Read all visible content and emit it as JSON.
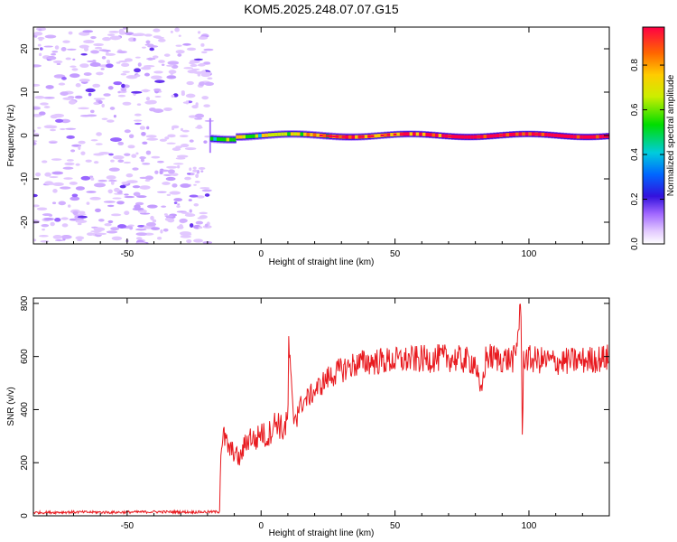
{
  "figure": {
    "title": "KOM5.2025.248.07.07.G15"
  },
  "colors": {
    "snr_line": "#e8191e",
    "signal_band_core": "#e8191e"
  },
  "chart_data": [
    {
      "type": "heatmap",
      "xlabel": "Height of straight line (km)",
      "ylabel": "Frequency (Hz)",
      "xlim": [
        -85,
        130
      ],
      "ylim": [
        -25,
        25
      ],
      "xticks": [
        -50,
        0,
        50,
        100
      ],
      "xtick_labels": [
        "-50",
        "0",
        "50",
        "100"
      ],
      "yticks": [
        -20,
        -10,
        0,
        10,
        20
      ],
      "ytick_labels": [
        "-20",
        "-10",
        "0",
        "10",
        "20"
      ],
      "noise_region_x": [
        -85,
        -19
      ],
      "signal_onset_x": -19,
      "signal_frequency_hz": 0,
      "colorbar": {
        "label": "Normalized spectral amplitude",
        "range": [
          0,
          0.97
        ],
        "ticks": [
          0.0,
          0.2,
          0.4,
          0.6,
          0.8
        ],
        "tick_labels": [
          "0.0",
          "0.2",
          "0.4",
          "0.6",
          "0.8"
        ],
        "colors": [
          "#ffffff",
          "#cc99ff",
          "#3311dd",
          "#0066ff",
          "#00ccdd",
          "#00dd00",
          "#ccee00",
          "#ffcc00",
          "#ff6600",
          "#ff0044"
        ]
      }
    },
    {
      "type": "line",
      "xlabel": "Height of straight line (km)",
      "ylabel": "SNR (v/v)",
      "xlim": [
        -85,
        130
      ],
      "ylim": [
        0,
        820
      ],
      "xticks": [
        -50,
        0,
        50,
        100
      ],
      "xtick_labels": [
        "-50",
        "0",
        "50",
        "100"
      ],
      "yticks": [
        0,
        200,
        400,
        600,
        800
      ],
      "ytick_labels": [
        "0",
        "200",
        "400",
        "600",
        "800"
      ],
      "series": [
        {
          "color": "#e8191e",
          "x": [
            -85,
            -70,
            -55,
            -40,
            -25,
            -15.5,
            -15,
            -14,
            -12,
            -10,
            -8,
            -6,
            -4,
            -2,
            0,
            2,
            4,
            6,
            8,
            10,
            10.3,
            12,
            15,
            20,
            25,
            30,
            35,
            40,
            50,
            60,
            70,
            80,
            82,
            84,
            90,
            95,
            97,
            97.5,
            98,
            100,
            110,
            120,
            130
          ],
          "y": [
            12,
            14,
            13,
            15,
            14,
            15,
            260,
            300,
            250,
            240,
            210,
            270,
            300,
            280,
            320,
            290,
            330,
            360,
            320,
            350,
            650,
            370,
            420,
            470,
            520,
            550,
            570,
            580,
            585,
            590,
            595,
            580,
            450,
            600,
            590,
            590,
            820,
            270,
            600,
            590,
            580,
            585,
            595
          ]
        }
      ]
    }
  ]
}
